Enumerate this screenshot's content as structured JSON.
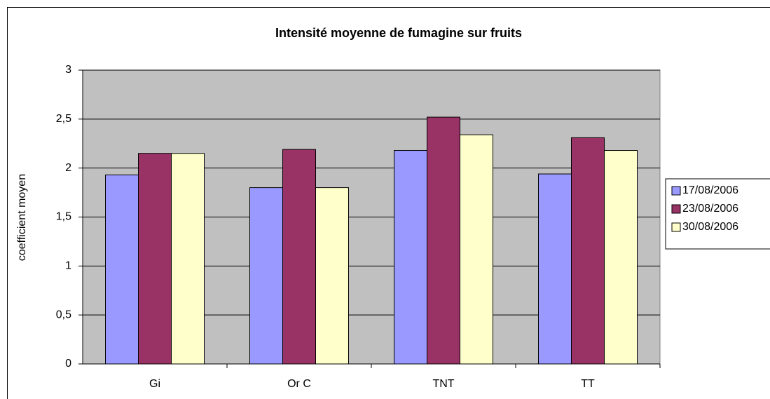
{
  "chart_data": {
    "type": "bar",
    "title": "Intensité moyenne de fumagine sur fruits",
    "y_label": "coefficient moyen",
    "categories": [
      "Gi",
      "Or C",
      "TNT",
      "TT"
    ],
    "series": [
      {
        "name": "17/08/2006",
        "color": "#9999ff",
        "values": [
          1.93,
          1.8,
          2.18,
          1.94
        ]
      },
      {
        "name": "23/08/2006",
        "color": "#993366",
        "values": [
          2.15,
          2.19,
          2.52,
          2.31
        ]
      },
      {
        "name": "30/08/2006",
        "color": "#ffffcc",
        "values": [
          2.15,
          1.8,
          2.34,
          2.18
        ]
      }
    ],
    "ylim": [
      0,
      3
    ],
    "yticks": [
      0,
      {
        "value": 0.5,
        "label": "0,5"
      },
      1,
      {
        "value": 1.5,
        "label": "1,5"
      },
      2,
      {
        "value": 2.5,
        "label": "2,5"
      },
      3
    ],
    "grid": true,
    "legend": "right",
    "plot_background": "#c0c0c0"
  }
}
